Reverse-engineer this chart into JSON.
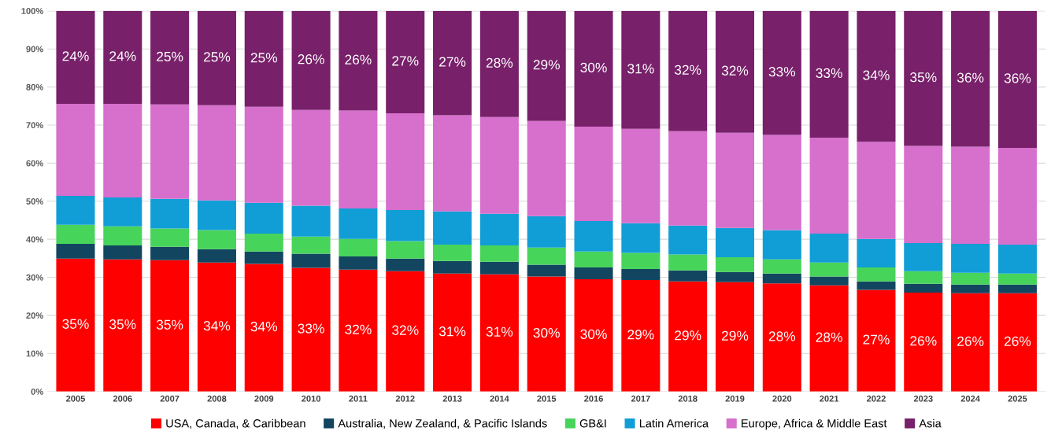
{
  "chart_data": {
    "type": "bar",
    "stacked": true,
    "categories": [
      "2005",
      "2006",
      "2007",
      "2008",
      "2009",
      "2010",
      "2011",
      "2012",
      "2013",
      "2014",
      "2015",
      "2016",
      "2017",
      "2018",
      "2019",
      "2020",
      "2021",
      "2022",
      "2023",
      "2024",
      "2025"
    ],
    "ylim": [
      0,
      100
    ],
    "yticks": [
      {
        "value": 0,
        "label": "0%"
      },
      {
        "value": 10,
        "label": "10%"
      },
      {
        "value": 20,
        "label": "20%"
      },
      {
        "value": 30,
        "label": "30%"
      },
      {
        "value": 40,
        "label": "40%"
      },
      {
        "value": 50,
        "label": "50%"
      },
      {
        "value": 60,
        "label": "60%"
      },
      {
        "value": 70,
        "label": "70%"
      },
      {
        "value": 80,
        "label": "80%"
      },
      {
        "value": 90,
        "label": "90%"
      },
      {
        "value": 100,
        "label": "100%"
      }
    ],
    "grid": "y",
    "legend": "bottom",
    "series": [
      {
        "name": "USA, Canada, & Caribbean",
        "color": "#ff0000",
        "values": [
          34.9,
          34.7,
          34.5,
          33.9,
          33.5,
          32.5,
          32.0,
          31.6,
          31.0,
          30.8,
          30.2,
          29.5,
          29.3,
          28.9,
          28.7,
          28.4,
          27.9,
          26.7,
          26.0,
          25.8,
          25.8
        ],
        "value_labels": [
          "35%",
          "35%",
          "35%",
          "34%",
          "34%",
          "33%",
          "32%",
          "32%",
          "31%",
          "31%",
          "30%",
          "30%",
          "29%",
          "29%",
          "29%",
          "28%",
          "28%",
          "27%",
          "26%",
          "26%",
          "26%"
        ]
      },
      {
        "name": "Australia, New Zealand, & Pacific Islands",
        "color": "#124660",
        "values": [
          3.9,
          3.7,
          3.5,
          3.5,
          3.3,
          3.7,
          3.5,
          3.3,
          3.3,
          3.3,
          3.1,
          3.1,
          2.9,
          2.9,
          2.7,
          2.6,
          2.3,
          2.2,
          2.3,
          2.3,
          2.3
        ]
      },
      {
        "name": "GB&I",
        "color": "#47d45a",
        "values": [
          5.0,
          5.0,
          4.8,
          5.0,
          4.7,
          4.5,
          4.6,
          4.6,
          4.3,
          4.3,
          4.5,
          4.2,
          4.2,
          4.2,
          3.9,
          3.7,
          3.7,
          3.7,
          3.3,
          3.1,
          2.9
        ]
      },
      {
        "name": "Latin America",
        "color": "#119ed6",
        "values": [
          7.6,
          7.6,
          7.8,
          7.8,
          8.1,
          8.1,
          8.0,
          8.2,
          8.7,
          8.3,
          8.3,
          8.0,
          7.8,
          7.6,
          7.7,
          7.7,
          7.6,
          7.5,
          7.4,
          7.6,
          7.6
        ]
      },
      {
        "name": "Europe, Africa & Middle East",
        "color": "#d76fcc",
        "values": [
          24.2,
          24.6,
          24.8,
          25.0,
          25.2,
          25.2,
          25.7,
          25.4,
          25.3,
          25.4,
          25.0,
          24.8,
          24.8,
          24.8,
          25.0,
          25.0,
          25.2,
          25.5,
          25.5,
          25.5,
          25.4
        ]
      },
      {
        "name": "Asia",
        "color": "#78206a",
        "values": [
          24.4,
          24.4,
          24.6,
          24.8,
          25.2,
          26.0,
          26.2,
          26.9,
          27.4,
          27.9,
          28.9,
          30.4,
          31.0,
          31.6,
          32.0,
          32.6,
          33.3,
          34.4,
          35.5,
          35.7,
          36.0
        ],
        "value_labels": [
          "24%",
          "24%",
          "25%",
          "25%",
          "25%",
          "26%",
          "26%",
          "27%",
          "27%",
          "28%",
          "29%",
          "30%",
          "31%",
          "32%",
          "32%",
          "33%",
          "33%",
          "34%",
          "35%",
          "36%",
          "36%"
        ]
      }
    ]
  }
}
